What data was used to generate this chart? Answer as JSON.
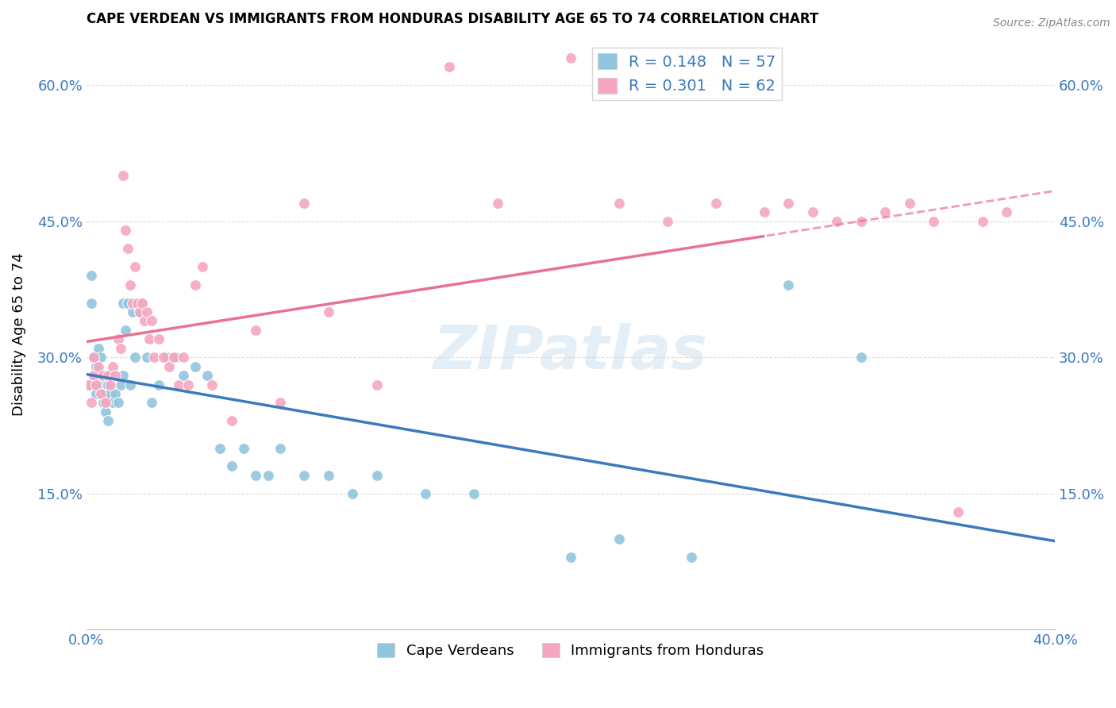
{
  "title": "CAPE VERDEAN VS IMMIGRANTS FROM HONDURAS DISABILITY AGE 65 TO 74 CORRELATION CHART",
  "source": "Source: ZipAtlas.com",
  "ylabel": "Disability Age 65 to 74",
  "x_min": 0.0,
  "x_max": 0.4,
  "y_min": 0.0,
  "y_max": 0.65,
  "color_blue": "#92c5de",
  "color_pink": "#f4a6c0",
  "color_blue_line": "#3a7abf",
  "color_pink_line": "#e8728f",
  "color_axis_text": "#3a7abf",
  "legend_label1": "R = 0.148   N = 57",
  "legend_label2": "R = 0.301   N = 62",
  "watermark": "ZIPatlas",
  "cape_verdean_x": [
    0.001,
    0.002,
    0.002,
    0.003,
    0.003,
    0.004,
    0.004,
    0.005,
    0.005,
    0.006,
    0.006,
    0.007,
    0.007,
    0.008,
    0.008,
    0.009,
    0.009,
    0.01,
    0.01,
    0.011,
    0.012,
    0.013,
    0.014,
    0.015,
    0.015,
    0.016,
    0.017,
    0.018,
    0.019,
    0.02,
    0.022,
    0.023,
    0.025,
    0.027,
    0.03,
    0.033,
    0.037,
    0.04,
    0.045,
    0.05,
    0.055,
    0.06,
    0.065,
    0.07,
    0.075,
    0.08,
    0.09,
    0.1,
    0.11,
    0.12,
    0.14,
    0.16,
    0.2,
    0.22,
    0.25,
    0.29,
    0.32
  ],
  "cape_verdean_y": [
    0.27,
    0.36,
    0.39,
    0.28,
    0.3,
    0.26,
    0.29,
    0.27,
    0.31,
    0.28,
    0.3,
    0.25,
    0.27,
    0.24,
    0.26,
    0.23,
    0.27,
    0.26,
    0.28,
    0.25,
    0.26,
    0.25,
    0.27,
    0.36,
    0.28,
    0.33,
    0.36,
    0.27,
    0.35,
    0.3,
    0.35,
    0.36,
    0.3,
    0.25,
    0.27,
    0.3,
    0.3,
    0.28,
    0.29,
    0.28,
    0.2,
    0.18,
    0.2,
    0.17,
    0.17,
    0.2,
    0.17,
    0.17,
    0.15,
    0.17,
    0.15,
    0.15,
    0.08,
    0.1,
    0.08,
    0.38,
    0.3
  ],
  "honduras_x": [
    0.001,
    0.002,
    0.003,
    0.003,
    0.004,
    0.005,
    0.006,
    0.007,
    0.008,
    0.009,
    0.01,
    0.011,
    0.012,
    0.013,
    0.014,
    0.015,
    0.016,
    0.017,
    0.018,
    0.019,
    0.02,
    0.021,
    0.022,
    0.023,
    0.024,
    0.025,
    0.026,
    0.027,
    0.028,
    0.03,
    0.032,
    0.034,
    0.036,
    0.038,
    0.04,
    0.042,
    0.045,
    0.048,
    0.052,
    0.06,
    0.07,
    0.08,
    0.09,
    0.1,
    0.12,
    0.15,
    0.17,
    0.2,
    0.22,
    0.24,
    0.26,
    0.28,
    0.29,
    0.3,
    0.31,
    0.32,
    0.33,
    0.34,
    0.35,
    0.36,
    0.37,
    0.38
  ],
  "honduras_y": [
    0.27,
    0.25,
    0.28,
    0.3,
    0.27,
    0.29,
    0.26,
    0.28,
    0.25,
    0.28,
    0.27,
    0.29,
    0.28,
    0.32,
    0.31,
    0.5,
    0.44,
    0.42,
    0.38,
    0.36,
    0.4,
    0.36,
    0.35,
    0.36,
    0.34,
    0.35,
    0.32,
    0.34,
    0.3,
    0.32,
    0.3,
    0.29,
    0.3,
    0.27,
    0.3,
    0.27,
    0.38,
    0.4,
    0.27,
    0.23,
    0.33,
    0.25,
    0.47,
    0.35,
    0.27,
    0.62,
    0.47,
    0.63,
    0.47,
    0.45,
    0.47,
    0.46,
    0.47,
    0.46,
    0.45,
    0.45,
    0.46,
    0.47,
    0.45,
    0.13,
    0.45,
    0.46
  ]
}
